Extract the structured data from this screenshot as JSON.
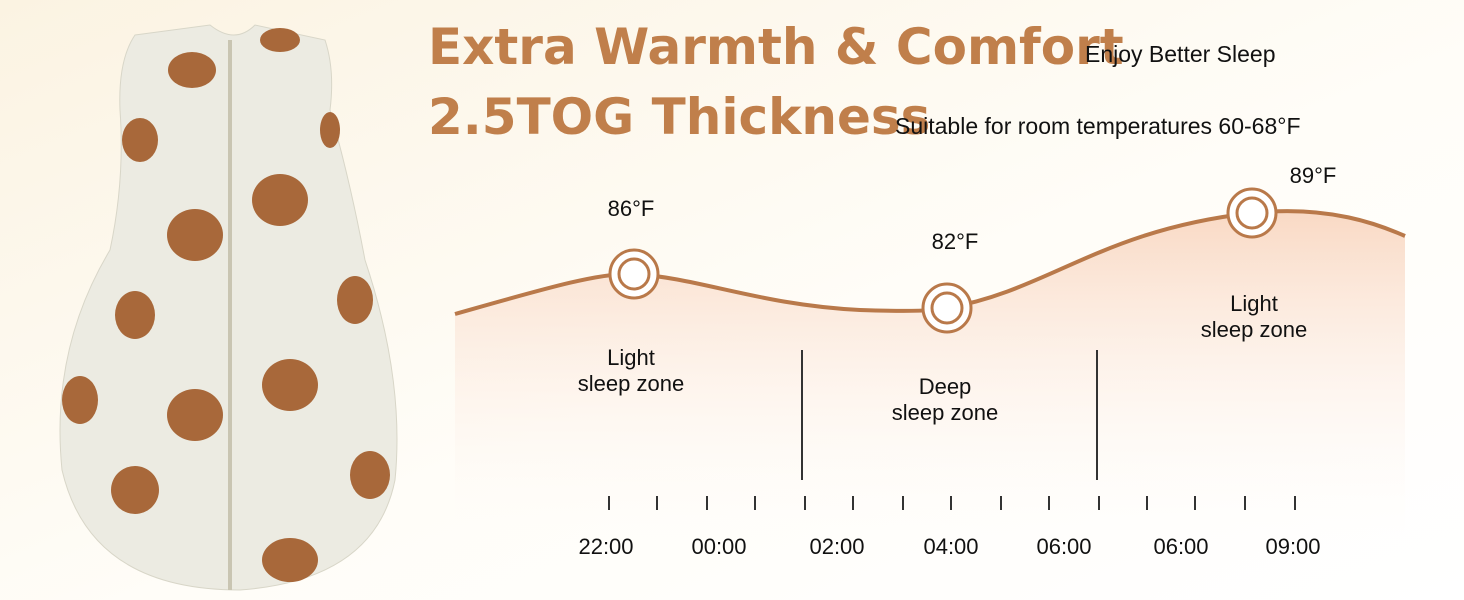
{
  "header": {
    "title": "Extra Warmth & Comfort",
    "title_note": "Enjoy Better Sleep",
    "subtitle": "2.5TOG Thickness",
    "subtitle_note": "Suitable for room temperatures 60-68°F"
  },
  "temperatures": [
    "86°F",
    "82°F",
    "89°F"
  ],
  "zones": [
    {
      "line1": "Light",
      "line2": "sleep zone"
    },
    {
      "line1": "Deep",
      "line2": "sleep zone"
    },
    {
      "line1": "Light",
      "line2": "sleep zone"
    }
  ],
  "times": [
    "22:00",
    "00:00",
    "02:00",
    "04:00",
    "06:00",
    "06:00",
    "09:00"
  ]
}
